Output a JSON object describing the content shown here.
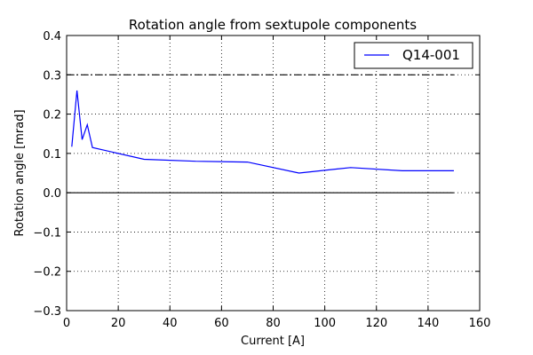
{
  "chart_data": {
    "type": "line",
    "title": "Rotation angle from sextupole components",
    "xlabel": "Current [A]",
    "ylabel": "Rotation angle [mrad]",
    "xlim": [
      0,
      160
    ],
    "ylim": [
      -0.3,
      0.4
    ],
    "x_ticks": [
      0,
      20,
      40,
      60,
      80,
      100,
      120,
      140,
      160
    ],
    "y_ticks": [
      -0.3,
      -0.2,
      -0.1,
      0.0,
      0.1,
      0.2,
      0.3,
      0.4
    ],
    "x_tick_labels": [
      "0",
      "20",
      "40",
      "60",
      "80",
      "100",
      "120",
      "140",
      "160"
    ],
    "y_tick_labels": [
      "−0.3",
      "−0.2",
      "−0.1",
      "0.0",
      "0.1",
      "0.2",
      "0.3",
      "0.4"
    ],
    "grid": true,
    "legend_position": "top-right",
    "series": [
      {
        "name": "Q14-001",
        "color": "#0000ff",
        "style": "solid",
        "x": [
          2,
          4,
          6,
          8,
          10,
          30,
          50,
          70,
          90,
          110,
          130,
          150
        ],
        "y": [
          0.117,
          0.26,
          0.135,
          0.173,
          0.115,
          0.085,
          0.08,
          0.078,
          0.05,
          0.064,
          0.056,
          0.056
        ]
      }
    ],
    "reference_lines": [
      {
        "y": 0.3,
        "style": "dashdot",
        "color": "#000000",
        "x_range": [
          0,
          150
        ]
      },
      {
        "y": -0.3,
        "style": "dashdot",
        "color": "#000000",
        "x_range": [
          0,
          150
        ]
      },
      {
        "y": 0.0,
        "style": "solid",
        "color": "#000000",
        "x_range": [
          0,
          150
        ]
      }
    ]
  }
}
